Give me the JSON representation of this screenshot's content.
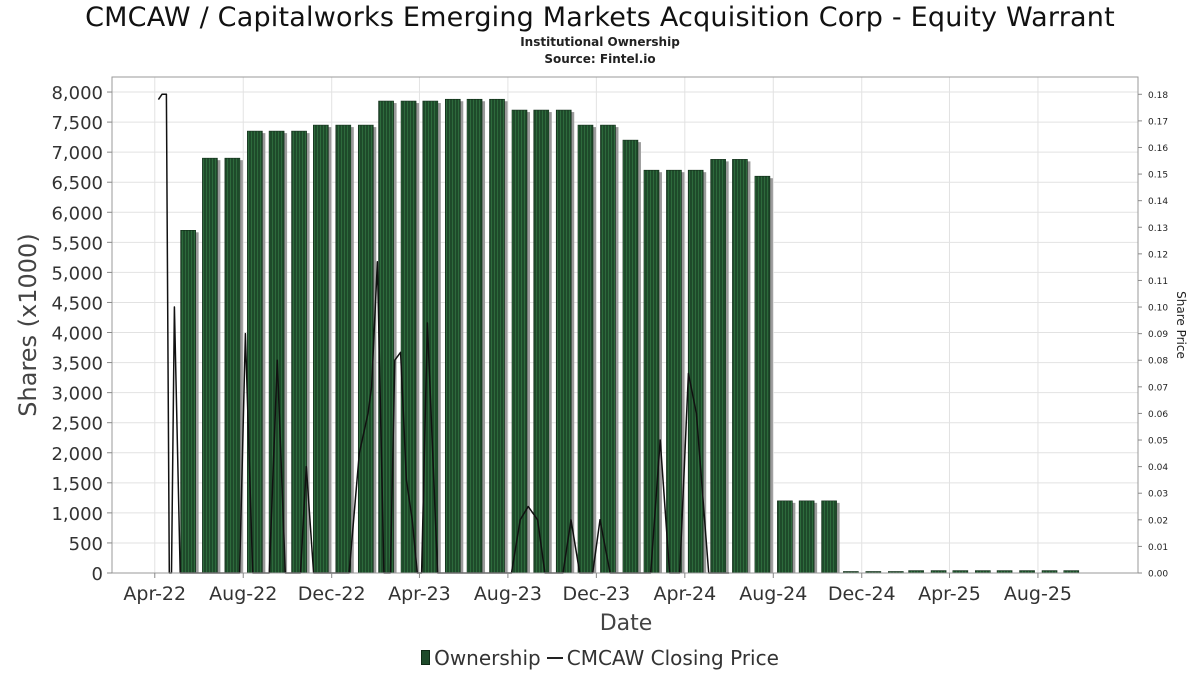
{
  "chart_data": {
    "type": "bar",
    "title": "CMCAW / Capitalworks Emerging Markets Acquisition Corp - Equity Warrant",
    "subtitle": "Institutional Ownership",
    "source": "Source: Fintel.io",
    "xlabel": "Date",
    "ylabel": "Shares (x1000)",
    "y2label": "Share Price",
    "ylim": [
      0,
      8000
    ],
    "y2lim": [
      0,
      0.18
    ],
    "grid": true,
    "legend_position": "bottom-center",
    "x_ticks": [
      "Apr-22",
      "Aug-22",
      "Dec-22",
      "Apr-23",
      "Aug-23",
      "Dec-23",
      "Apr-24",
      "Aug-24",
      "Dec-24",
      "Apr-25",
      "Aug-25"
    ],
    "y_ticks": [
      "0",
      "500",
      "1,000",
      "1,500",
      "2,000",
      "2,500",
      "3,000",
      "3,500",
      "4,000",
      "4,500",
      "5,000",
      "5,500",
      "6,000",
      "6,500",
      "7,000",
      "7,500",
      "8,000"
    ],
    "y2_ticks": [
      "0.00",
      "0.01",
      "0.02",
      "0.03",
      "0.04",
      "0.05",
      "0.06",
      "0.07",
      "0.08",
      "0.09",
      "0.10",
      "0.11",
      "0.12",
      "0.13",
      "0.14",
      "0.15",
      "0.16",
      "0.17",
      "0.18"
    ],
    "x_range": [
      "2022-02-15",
      "2025-12-31"
    ],
    "series": [
      {
        "name": "Ownership",
        "type": "bar",
        "color": "#1e4a2a",
        "x": [
          "2022-05-31",
          "2022-06-30",
          "2022-07-31",
          "2022-08-31",
          "2022-09-30",
          "2022-10-31",
          "2022-11-30",
          "2022-12-31",
          "2023-01-31",
          "2023-02-28",
          "2023-03-31",
          "2023-04-30",
          "2023-05-31",
          "2023-06-30",
          "2023-07-31",
          "2023-08-31",
          "2023-09-30",
          "2023-10-31",
          "2023-11-30",
          "2023-12-31",
          "2024-01-31",
          "2024-02-29",
          "2024-03-31",
          "2024-04-30",
          "2024-05-31",
          "2024-06-30",
          "2024-07-31",
          "2024-08-31",
          "2024-09-30",
          "2024-10-31",
          "2024-11-30",
          "2024-12-31",
          "2025-01-31",
          "2025-02-28",
          "2025-03-31",
          "2025-04-30",
          "2025-05-31",
          "2025-06-30",
          "2025-07-31",
          "2025-08-31",
          "2025-09-30"
        ],
        "values": [
          5700,
          6900,
          6900,
          7350,
          7350,
          7350,
          7450,
          7450,
          7450,
          7850,
          7850,
          7850,
          7880,
          7880,
          7880,
          7700,
          7700,
          7700,
          7450,
          7450,
          7200,
          6700,
          6700,
          6700,
          6880,
          6880,
          6600,
          1200,
          1200,
          1200,
          5,
          5,
          5,
          40,
          40,
          40,
          40,
          40,
          40,
          40,
          40
        ]
      },
      {
        "name": "CMCAW Closing Price",
        "type": "line",
        "color": "#111111",
        "x": [
          "2022-04-20",
          "2022-04-25",
          "2022-05-01",
          "2022-05-05",
          "2022-05-08",
          "2022-05-12",
          "2022-05-20",
          "2022-06-05",
          "2022-06-25",
          "2022-07-05",
          "2022-07-25",
          "2022-08-10",
          "2022-08-18",
          "2022-08-28",
          "2022-09-05",
          "2022-09-20",
          "2022-10-01",
          "2022-10-12",
          "2022-10-25",
          "2022-11-02",
          "2022-11-10",
          "2022-11-20",
          "2022-12-02",
          "2022-12-15",
          "2022-12-28",
          "2023-01-08",
          "2023-01-22",
          "2023-02-03",
          "2023-02-08",
          "2023-02-16",
          "2023-02-25",
          "2023-03-06",
          "2023-03-12",
          "2023-03-20",
          "2023-03-28",
          "2023-04-05",
          "2023-04-12",
          "2023-04-18",
          "2023-04-26",
          "2023-05-10",
          "2023-06-01",
          "2023-07-01",
          "2023-08-01",
          "2023-08-20",
          "2023-09-01",
          "2023-09-12",
          "2023-09-25",
          "2023-10-05",
          "2023-10-15",
          "2023-10-30",
          "2023-11-10",
          "2023-11-22",
          "2023-12-01",
          "2023-12-10",
          "2023-12-20",
          "2024-01-03",
          "2024-01-15",
          "2024-01-25",
          "2024-02-05",
          "2024-02-15",
          "2024-02-28",
          "2024-03-12",
          "2024-03-25",
          "2024-04-08",
          "2024-04-20",
          "2024-05-01",
          "2024-05-18",
          "2024-05-26",
          "2024-06-05",
          "2024-06-15"
        ],
        "values": [
          0.178,
          0.18,
          0.18,
          0.0,
          0.0,
          0.1,
          0.0,
          0.0,
          0.0,
          0.0,
          0.0,
          0.0,
          0.09,
          0.0,
          0.0,
          0.0,
          0.08,
          0.0,
          0.0,
          0.0,
          0.04,
          0.0,
          0.0,
          0.0,
          0.0,
          0.0,
          0.045,
          0.06,
          0.07,
          0.117,
          0.0,
          0.0,
          0.08,
          0.083,
          0.035,
          0.02,
          0.0,
          0.0,
          0.094,
          0.0,
          0.0,
          0.0,
          0.0,
          0.0,
          0.02,
          0.025,
          0.02,
          0.0,
          0.0,
          0.0,
          0.02,
          0.0,
          0.0,
          0.0,
          0.02,
          0.0,
          0.0,
          0.0,
          0.0,
          0.0,
          0.0,
          0.05,
          0.0,
          0.0,
          0.075,
          0.06,
          0.0,
          0.0,
          0.0,
          0.0
        ]
      }
    ]
  }
}
